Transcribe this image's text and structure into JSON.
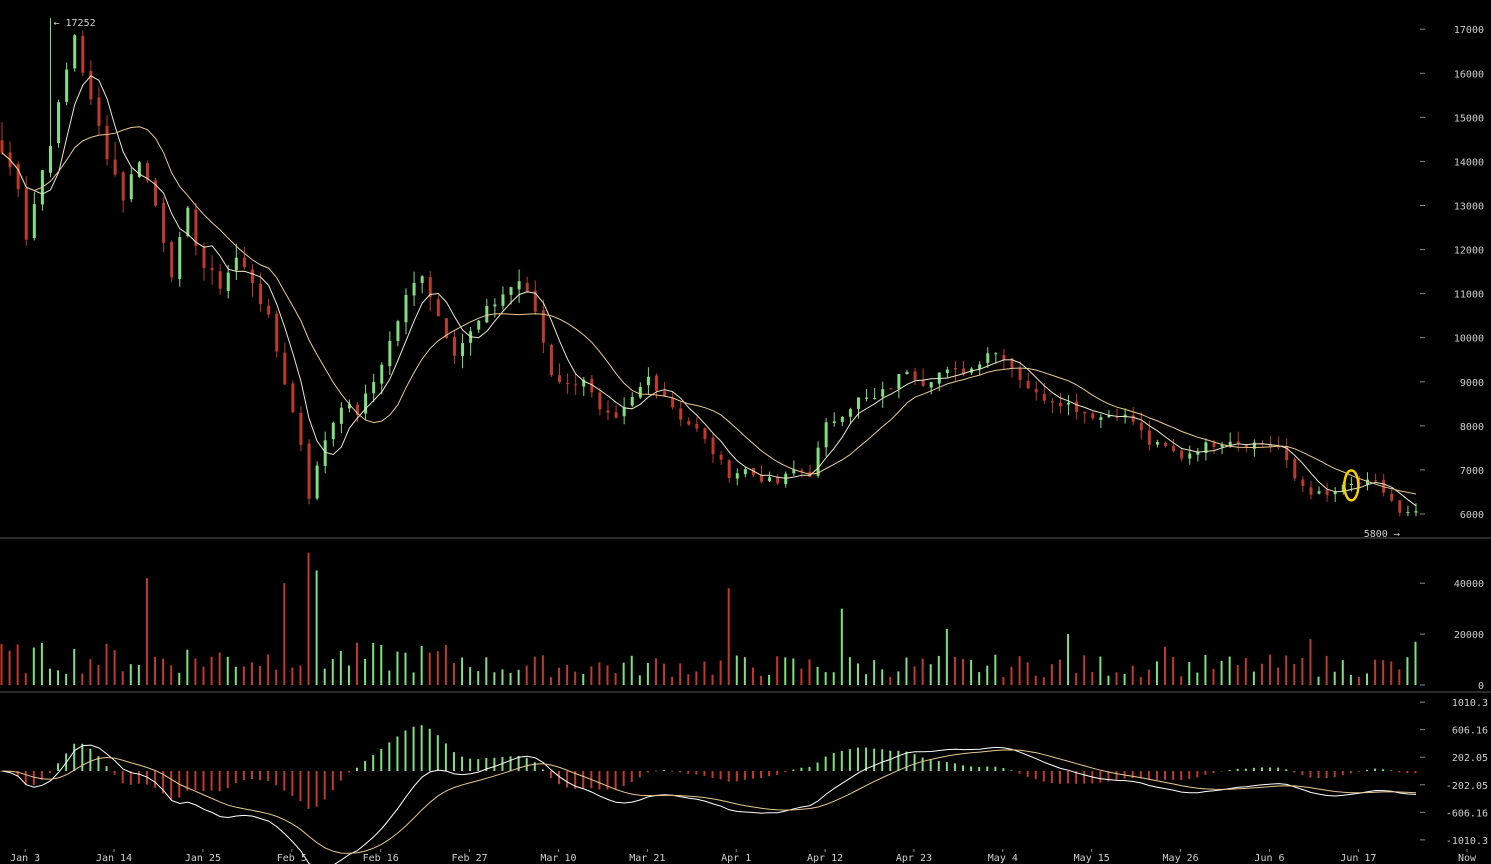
{
  "chart_data": [
    {
      "type": "candlestick",
      "panel": "price",
      "x_tick_labels": [
        "Jan 3",
        "Jan 14",
        "Jan 25",
        "Feb 5",
        "Feb 16",
        "Feb 27",
        "Mar 10",
        "Mar 21",
        "Apr 1",
        "Apr 12",
        "Apr 23",
        "May 4",
        "May 15",
        "May 26",
        "Jun 6",
        "Jun 17",
        "Now"
      ],
      "y_tick_labels": [
        "17000",
        "16000",
        "15000",
        "14000",
        "13000",
        "12000",
        "11000",
        "10000",
        "9000",
        "8000",
        "7000",
        "6000"
      ],
      "ylim": [
        5500,
        17300
      ],
      "annotations": [
        {
          "text": "← 17252",
          "value": 17252,
          "date_index": 6
        },
        {
          "text": "5800 →",
          "value": 5800,
          "date_index": 173
        }
      ],
      "close_waypoints": [
        [
          0,
          14200
        ],
        [
          2,
          13500
        ],
        [
          3,
          12300
        ],
        [
          5,
          13800
        ],
        [
          7,
          15200
        ],
        [
          9,
          16900
        ],
        [
          11,
          15300
        ],
        [
          13,
          14200
        ],
        [
          15,
          13200
        ],
        [
          17,
          14100
        ],
        [
          19,
          13000
        ],
        [
          21,
          11500
        ],
        [
          23,
          12800
        ],
        [
          25,
          11600
        ],
        [
          27,
          11200
        ],
        [
          29,
          11800
        ],
        [
          31,
          11300
        ],
        [
          33,
          10400
        ],
        [
          35,
          9000
        ],
        [
          37,
          7600
        ],
        [
          38,
          6400
        ],
        [
          40,
          7700
        ],
        [
          42,
          8500
        ],
        [
          44,
          8300
        ],
        [
          46,
          9000
        ],
        [
          48,
          9900
        ],
        [
          50,
          10900
        ],
        [
          52,
          11500
        ],
        [
          54,
          10500
        ],
        [
          56,
          9700
        ],
        [
          58,
          10100
        ],
        [
          60,
          10600
        ],
        [
          62,
          11000
        ],
        [
          64,
          11300
        ],
        [
          66,
          10600
        ],
        [
          68,
          9200
        ],
        [
          70,
          8900
        ],
        [
          72,
          9100
        ],
        [
          74,
          8300
        ],
        [
          76,
          8100
        ],
        [
          78,
          8600
        ],
        [
          80,
          9100
        ],
        [
          82,
          8700
        ],
        [
          84,
          8200
        ],
        [
          86,
          7900
        ],
        [
          88,
          7400
        ],
        [
          90,
          6900
        ],
        [
          92,
          7000
        ],
        [
          94,
          6800
        ],
        [
          96,
          6700
        ],
        [
          98,
          7000
        ],
        [
          100,
          6900
        ],
        [
          102,
          8000
        ],
        [
          104,
          8300
        ],
        [
          106,
          8600
        ],
        [
          108,
          8600
        ],
        [
          110,
          8900
        ],
        [
          112,
          9300
        ],
        [
          114,
          9000
        ],
        [
          116,
          9200
        ],
        [
          118,
          9200
        ],
        [
          120,
          9300
        ],
        [
          122,
          9700
        ],
        [
          124,
          9600
        ],
        [
          126,
          9100
        ],
        [
          128,
          8700
        ],
        [
          130,
          8600
        ],
        [
          132,
          8500
        ],
        [
          134,
          8300
        ],
        [
          136,
          8200
        ],
        [
          138,
          8300
        ],
        [
          140,
          8100
        ],
        [
          142,
          7600
        ],
        [
          144,
          7500
        ],
        [
          146,
          7300
        ],
        [
          148,
          7500
        ],
        [
          150,
          7600
        ],
        [
          152,
          7700
        ],
        [
          154,
          7600
        ],
        [
          156,
          7600
        ],
        [
          158,
          7500
        ],
        [
          160,
          6800
        ],
        [
          162,
          6500
        ],
        [
          164,
          6400
        ],
        [
          166,
          6600
        ],
        [
          168,
          6700
        ],
        [
          170,
          6700
        ],
        [
          172,
          6300
        ],
        [
          173,
          6000
        ]
      ]
    },
    {
      "type": "bar",
      "panel": "volume",
      "y_tick_labels": [
        "40000",
        "20000",
        "0"
      ],
      "ylim": [
        0,
        55000
      ],
      "spikes": [
        [
          18,
          42000
        ],
        [
          35,
          40000
        ],
        [
          38,
          52000
        ],
        [
          39,
          45000
        ],
        [
          90,
          38000
        ],
        [
          104,
          30000
        ],
        [
          117,
          22000
        ],
        [
          132,
          20000
        ],
        [
          144,
          15000
        ],
        [
          162,
          18000
        ],
        [
          175,
          17000
        ]
      ]
    },
    {
      "type": "histogram+line",
      "panel": "macd",
      "y_tick_labels": [
        "1010.3",
        "606.16",
        "202.05",
        "-202.05",
        "-606.16",
        "-1010.3"
      ],
      "ylim": [
        -1100,
        1100
      ]
    }
  ],
  "colors": {
    "up": "#7ee07e",
    "down": "#c0392b",
    "ma_fast": "#e8e8c8",
    "ma_slow": "#e8c890",
    "grid_axis": "#888888",
    "highlight_ring": "#f5d000"
  },
  "highlight": {
    "date_index": 167,
    "value": 6650
  }
}
